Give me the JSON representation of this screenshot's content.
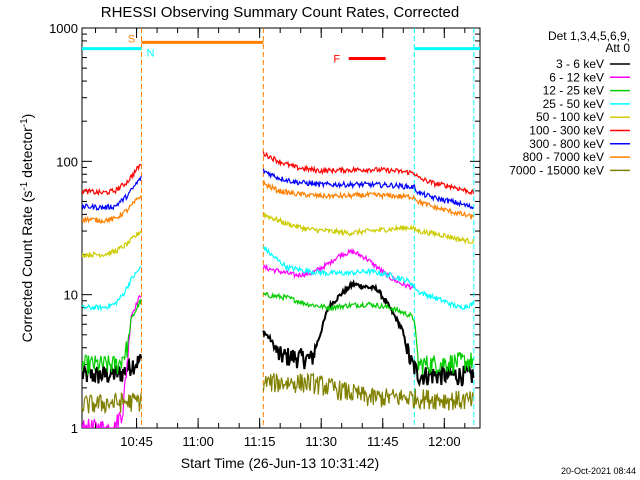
{
  "chart_data": {
    "type": "line",
    "title": "RHESSI Observing Summary Count Rates, Corrected",
    "xlabel": "Start Time (26-Jun-13 10:31:42)",
    "ylabel_main": "Corrected Count Rate (s",
    "ylabel_sup1": "-1",
    "ylabel_mid": " detector",
    "ylabel_sup2": "-1",
    "ylabel_end": ")",
    "yscale": "log",
    "ylim": [
      1,
      1000
    ],
    "xlim_minutes": [
      0,
      97
    ],
    "x_ticks": [
      {
        "label": "10:45",
        "minute": 13.3
      },
      {
        "label": "11:00",
        "minute": 28.3
      },
      {
        "label": "11:15",
        "minute": 43.3
      },
      {
        "label": "11:30",
        "minute": 58.3
      },
      {
        "label": "11:45",
        "minute": 73.3
      },
      {
        "label": "12:00",
        "minute": 88.3
      }
    ],
    "y_ticks": [
      {
        "label": "1",
        "value": 1
      },
      {
        "label": "10",
        "value": 10
      },
      {
        "label": "100",
        "value": 100
      },
      {
        "label": "1000",
        "value": 1000
      }
    ],
    "legend_header": [
      "Det 1,3,4,5,6,9,",
      "Att 0"
    ],
    "timestamp": "20-Oct-2021 08:44",
    "flags": {
      "saa": {
        "label": "S",
        "start_min": 14.5,
        "end_min": 44.2,
        "level": 780,
        "color": "#ff8000"
      },
      "night": [
        {
          "label": "N",
          "start_min": 0,
          "end_min": 14.5,
          "level": 700,
          "color": "#00ffff"
        },
        {
          "label": "",
          "start_min": 81.0,
          "end_min": 97,
          "level": 700,
          "color": "#00ffff"
        }
      ],
      "flare": {
        "label": "F",
        "start_min": 65,
        "end_min": 74,
        "level": 590,
        "color": "#ff0000"
      }
    },
    "vlines": [
      {
        "minute": 14.5,
        "color": "#ff8000"
      },
      {
        "minute": 44.2,
        "color": "#ff8000"
      },
      {
        "minute": 81.0,
        "color": "#00ffff"
      },
      {
        "minute": 95.5,
        "color": "#00ffff"
      }
    ],
    "segments": [
      [
        0,
        14.5
      ],
      [
        44.2,
        95.5
      ]
    ],
    "series": [
      {
        "name": "3 - 6 keV",
        "color": "#000000",
        "points": [
          [
            0,
            2.5
          ],
          [
            5,
            2.5
          ],
          [
            10,
            2.6
          ],
          [
            12,
            3
          ],
          [
            14.3,
            3.2
          ],
          [
            44.2,
            5.3
          ],
          [
            46,
            4.6
          ],
          [
            48,
            3.5
          ],
          [
            52,
            3.4
          ],
          [
            56,
            3.3
          ],
          [
            58,
            5
          ],
          [
            60,
            8
          ],
          [
            63,
            10
          ],
          [
            66,
            12
          ],
          [
            69,
            11.5
          ],
          [
            72,
            11
          ],
          [
            75,
            8
          ],
          [
            78,
            5.5
          ],
          [
            80,
            3.2
          ],
          [
            82,
            2.5
          ],
          [
            90,
            2.5
          ],
          [
            95.5,
            2.5
          ]
        ]
      },
      {
        "name": "6 - 12 keV",
        "color": "#ff00ff",
        "points": [
          [
            0,
            1
          ],
          [
            8,
            1
          ],
          [
            10,
            1.4
          ],
          [
            12,
            7
          ],
          [
            14.3,
            10
          ],
          [
            44.2,
            16
          ],
          [
            48,
            15
          ],
          [
            52,
            14
          ],
          [
            56,
            14.5
          ],
          [
            60,
            17
          ],
          [
            63,
            20
          ],
          [
            66,
            21
          ],
          [
            69,
            19
          ],
          [
            72,
            16
          ],
          [
            75,
            13.5
          ],
          [
            78,
            12
          ],
          [
            80,
            11.5
          ],
          [
            81,
            11
          ]
        ]
      },
      {
        "name": "12 - 25 keV",
        "color": "#00cc00",
        "points": [
          [
            0,
            3
          ],
          [
            9,
            3
          ],
          [
            11,
            4
          ],
          [
            12,
            6.5
          ],
          [
            14.3,
            9
          ],
          [
            44.2,
            10
          ],
          [
            50,
            9.5
          ],
          [
            55,
            8.5
          ],
          [
            60,
            8
          ],
          [
            65,
            8.3
          ],
          [
            70,
            8.5
          ],
          [
            75,
            8
          ],
          [
            80,
            7
          ],
          [
            81,
            6.5
          ],
          [
            82,
            3
          ],
          [
            95.5,
            3.2
          ]
        ]
      },
      {
        "name": "25 - 50 keV",
        "color": "#00ffff",
        "points": [
          [
            0,
            8
          ],
          [
            5,
            8
          ],
          [
            8,
            8.5
          ],
          [
            10,
            10
          ],
          [
            12,
            13
          ],
          [
            14.3,
            16
          ],
          [
            44.2,
            23
          ],
          [
            46,
            20
          ],
          [
            50,
            16
          ],
          [
            55,
            15
          ],
          [
            60,
            14.5
          ],
          [
            65,
            14.5
          ],
          [
            70,
            15
          ],
          [
            75,
            14
          ],
          [
            80,
            12.5
          ],
          [
            82,
            10.5
          ],
          [
            88,
            9
          ],
          [
            92,
            8
          ],
          [
            95.5,
            8.5
          ]
        ]
      },
      {
        "name": "50 - 100 keV",
        "color": "#cccc00",
        "points": [
          [
            0,
            20
          ],
          [
            5,
            20
          ],
          [
            8,
            21
          ],
          [
            11,
            24
          ],
          [
            14.3,
            30
          ],
          [
            44.2,
            40
          ],
          [
            50,
            34
          ],
          [
            55,
            31
          ],
          [
            60,
            30
          ],
          [
            65,
            29
          ],
          [
            70,
            30
          ],
          [
            75,
            31
          ],
          [
            80,
            32
          ],
          [
            82,
            30
          ],
          [
            88,
            28
          ],
          [
            92,
            26
          ],
          [
            95.5,
            25
          ]
        ]
      },
      {
        "name": "100 - 300 keV",
        "color": "#ff0000",
        "points": [
          [
            0,
            60
          ],
          [
            5,
            58
          ],
          [
            8,
            60
          ],
          [
            11,
            70
          ],
          [
            14.3,
            95
          ],
          [
            44.2,
            115
          ],
          [
            48,
            100
          ],
          [
            52,
            90
          ],
          [
            58,
            85
          ],
          [
            64,
            86
          ],
          [
            70,
            87
          ],
          [
            76,
            85
          ],
          [
            81,
            82
          ],
          [
            82,
            75
          ],
          [
            86,
            68
          ],
          [
            90,
            65
          ],
          [
            95.5,
            58
          ]
        ]
      },
      {
        "name": "300 - 800 keV",
        "color": "#0000ff",
        "points": [
          [
            0,
            46
          ],
          [
            5,
            45
          ],
          [
            8,
            46
          ],
          [
            11,
            55
          ],
          [
            14.3,
            75
          ],
          [
            44.2,
            85
          ],
          [
            48,
            75
          ],
          [
            52,
            70
          ],
          [
            58,
            67
          ],
          [
            64,
            67
          ],
          [
            70,
            67
          ],
          [
            76,
            66
          ],
          [
            81,
            64
          ],
          [
            82,
            58
          ],
          [
            86,
            53
          ],
          [
            90,
            50
          ],
          [
            95.5,
            45
          ]
        ]
      },
      {
        "name": "800 - 7000 keV",
        "color": "#ff8000",
        "points": [
          [
            0,
            37
          ],
          [
            5,
            36
          ],
          [
            8,
            37
          ],
          [
            11,
            43
          ],
          [
            14.3,
            55
          ],
          [
            44.2,
            68
          ],
          [
            48,
            60
          ],
          [
            52,
            57
          ],
          [
            58,
            55
          ],
          [
            64,
            55
          ],
          [
            70,
            56
          ],
          [
            76,
            55
          ],
          [
            81,
            54
          ],
          [
            82,
            50
          ],
          [
            86,
            45
          ],
          [
            90,
            42
          ],
          [
            95.5,
            38
          ]
        ]
      },
      {
        "name": "7000 - 15000 keV",
        "color": "#808000",
        "points": [
          [
            0,
            1.5
          ],
          [
            14.3,
            1.6
          ],
          [
            44.2,
            2.2
          ],
          [
            56,
            2.2
          ],
          [
            70,
            1.7
          ],
          [
            80,
            1.7
          ],
          [
            95.5,
            1.6
          ]
        ]
      }
    ]
  }
}
